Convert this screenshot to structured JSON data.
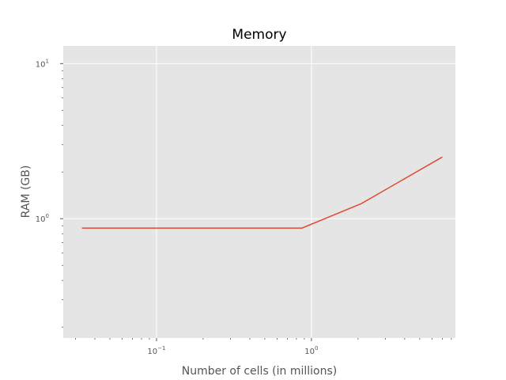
{
  "chart_data": {
    "type": "line",
    "title": "Memory",
    "xlabel": "Number of cells (in millions)",
    "ylabel": "RAM (GB)",
    "xscale": "log",
    "yscale": "log",
    "xlim": [
      0.025,
      8.5
    ],
    "ylim": [
      0.17,
      13
    ],
    "grid": true,
    "x_ticks": [
      {
        "value": 0.1,
        "base": "10",
        "exp": "−1"
      },
      {
        "value": 1,
        "base": "10",
        "exp": "0"
      }
    ],
    "y_ticks": [
      {
        "value": 1,
        "base": "10",
        "exp": "0"
      },
      {
        "value": 10,
        "base": "10",
        "exp": "1"
      }
    ],
    "series": [
      {
        "color": "#E24A33",
        "x": [
          0.033,
          0.87,
          2.1,
          7.0
        ],
        "y": [
          0.87,
          0.87,
          1.25,
          2.5
        ]
      }
    ],
    "colors": {
      "plot_background": "#E5E5E5",
      "grid": "#FFFFFF",
      "text": "#555555"
    }
  }
}
